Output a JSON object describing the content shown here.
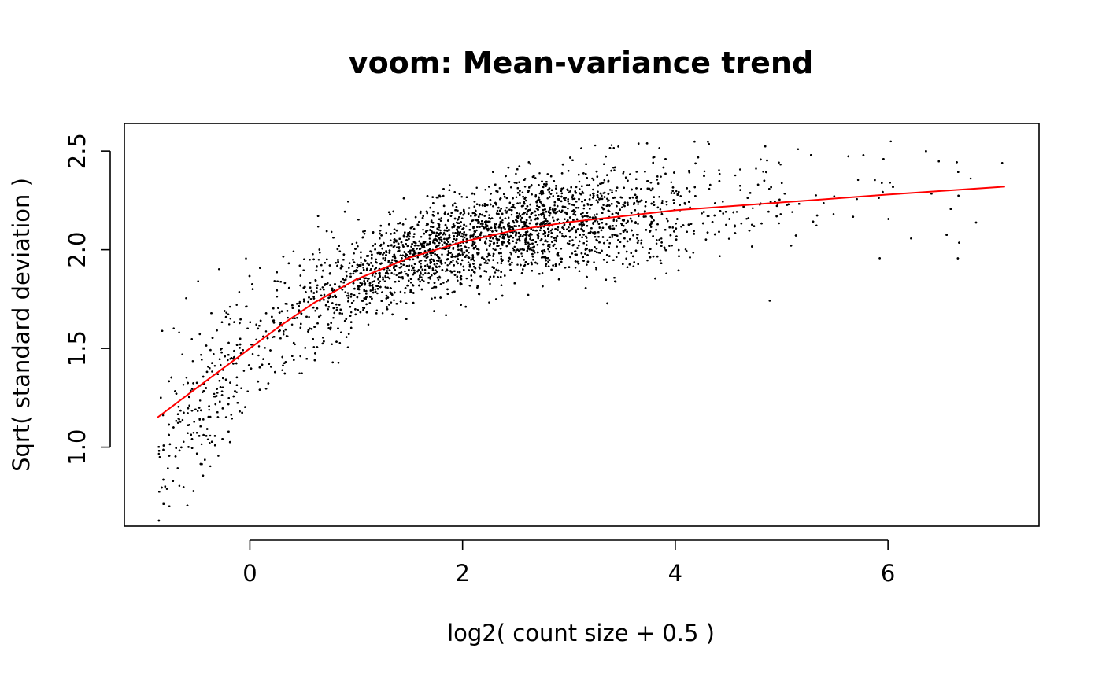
{
  "chart_data": {
    "type": "scatter",
    "title": "voom: Mean-variance trend",
    "xlabel": "log2( count size + 0.5 )",
    "ylabel": "Sqrt( standard deviation )",
    "xlim": [
      -1.18,
      7.42
    ],
    "ylim": [
      0.6,
      2.64
    ],
    "x_ticks": [
      0,
      2,
      4,
      6
    ],
    "x_tick_labels": [
      "0",
      "2",
      "4",
      "6"
    ],
    "y_ticks": [
      1.0,
      1.5,
      2.0,
      2.5
    ],
    "y_tick_labels": [
      "1.0",
      "1.5",
      "2.0",
      "2.5"
    ],
    "grid": false,
    "legend": "none",
    "point_color": "#000000",
    "trend_color": "#ff0000",
    "points_approx_count": 9000,
    "points_x_range": [
      -0.87,
      7.1
    ],
    "points_y_range": [
      0.61,
      2.55
    ],
    "trend_line": {
      "x": [
        -0.87,
        -0.5,
        -0.2,
        0.0,
        0.3,
        0.6,
        1.0,
        1.5,
        2.0,
        2.5,
        3.0,
        3.5,
        4.0,
        5.0,
        6.0,
        7.1
      ],
      "y": [
        1.15,
        1.3,
        1.42,
        1.5,
        1.62,
        1.73,
        1.85,
        1.96,
        2.04,
        2.1,
        2.14,
        2.17,
        2.2,
        2.24,
        2.28,
        2.32
      ]
    }
  }
}
